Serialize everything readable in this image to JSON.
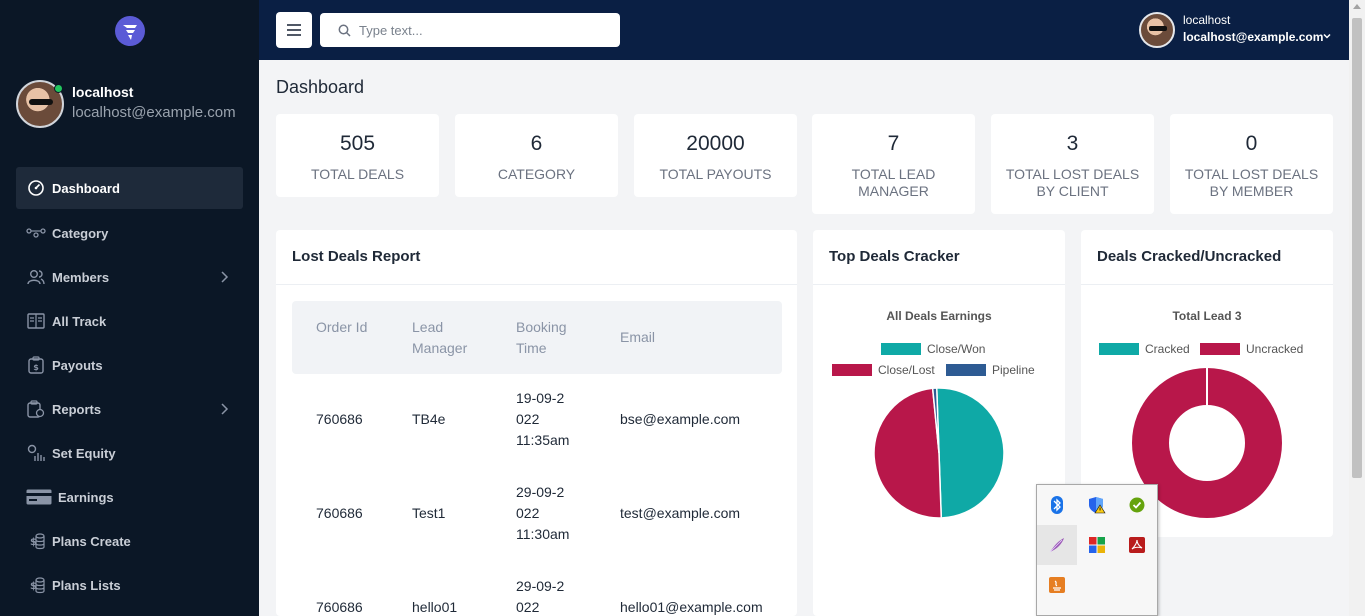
{
  "sidebar": {
    "user": {
      "name": "localhost",
      "email": "localhost@example.com"
    },
    "items": [
      {
        "label": "Dashboard",
        "icon": "dashboard-icon"
      },
      {
        "label": "Category",
        "icon": "category-icon"
      },
      {
        "label": "Members",
        "icon": "members-icon"
      },
      {
        "label": "All Track",
        "icon": "book-icon"
      },
      {
        "label": "Payouts",
        "icon": "payouts-icon"
      },
      {
        "label": "Reports",
        "icon": "reports-icon"
      },
      {
        "label": "Set Equity",
        "icon": "equity-icon"
      },
      {
        "label": "Earnings",
        "icon": "card-icon"
      },
      {
        "label": "Plans Create",
        "icon": "coins-icon"
      },
      {
        "label": "Plans Lists",
        "icon": "coins-icon"
      }
    ]
  },
  "topbar": {
    "search_placeholder": "Type text...",
    "user_name": "localhost",
    "user_email": "localhost@example.com"
  },
  "page": {
    "title": "Dashboard"
  },
  "stats": [
    {
      "value": "505",
      "label": "TOTAL DEALS"
    },
    {
      "value": "6",
      "label": "CATEGORY"
    },
    {
      "value": "20000",
      "label": "TOTAL PAYOUTS"
    },
    {
      "value": "7",
      "label": "TOTAL LEAD MANAGER"
    },
    {
      "value": "3",
      "label": "TOTAL LOST DEALS BY CLIENT"
    },
    {
      "value": "0",
      "label": "TOTAL LOST DEALS BY MEMBER"
    }
  ],
  "lost_deals": {
    "title": "Lost Deals Report",
    "columns": [
      "Order Id",
      "Lead Manager",
      "Booking Time",
      "Email"
    ],
    "rows": [
      {
        "order_id": "760686",
        "lead_manager": "TB4e",
        "booking_date": "19-09-2022",
        "booking_time": "11:35am",
        "email": "bse@example.com"
      },
      {
        "order_id": "760686",
        "lead_manager": "Test1",
        "booking_date": "29-09-2022",
        "booking_time": "11:30am",
        "email": "test@example.com"
      },
      {
        "order_id": "760686",
        "lead_manager": "hello01",
        "booking_date": "29-09-2022",
        "booking_time": "",
        "email": "hello01@example.com"
      }
    ]
  },
  "top_deals": {
    "title": "Top Deals Cracker",
    "chart_data": {
      "type": "pie",
      "title": "All Deals Earnings",
      "legend": [
        "Close/Won",
        "Close/Lost",
        "Pipeline"
      ],
      "legend_placement": "top",
      "colors": [
        "#0fa9a6",
        "#b8174a",
        "#2e5b93"
      ],
      "values": [
        50,
        49,
        1
      ]
    }
  },
  "cracked": {
    "title": "Deals Cracked/Uncracked",
    "chart_data": {
      "type": "doughnut",
      "title": "Total Lead 3",
      "legend": [
        "Cracked",
        "Uncracked"
      ],
      "legend_placement": "top",
      "colors": [
        "#0fa9a6",
        "#b8174a"
      ],
      "values": [
        0,
        3
      ]
    }
  },
  "tray": {
    "icons": [
      "bluetooth-icon",
      "shield-warning-icon",
      "green-check-icon",
      "feather-icon",
      "windows-app-icon",
      "pdf-icon",
      "java-icon"
    ]
  }
}
